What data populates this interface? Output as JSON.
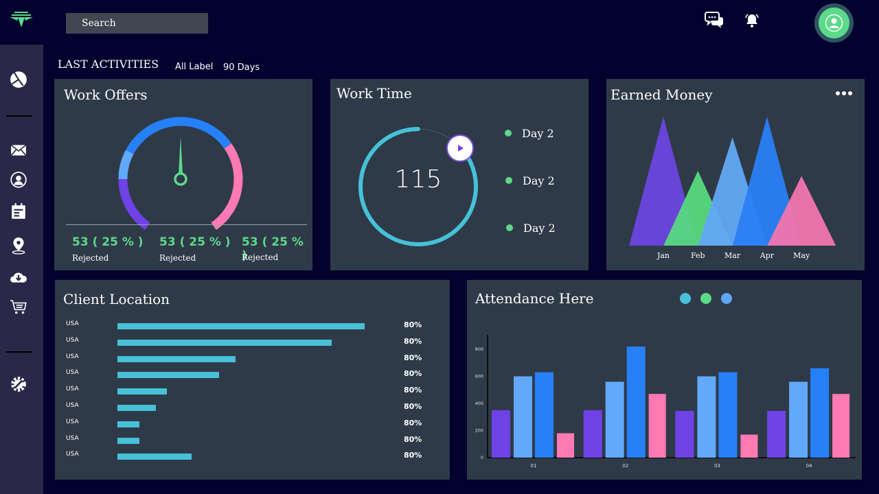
{
  "header": {
    "search_placeholder": "Search",
    "icons": [
      "logo-icon",
      "chat-icon",
      "bell-icon",
      "user-avatar-icon"
    ],
    "avatar_color": "#5cd98a"
  },
  "sidebar": {
    "items": [
      "pie-chart-icon",
      "mail-icon",
      "user-icon",
      "calendar-icon",
      "location-icon",
      "cloud-download-icon",
      "cart-icon",
      "settings-icon"
    ]
  },
  "activities": {
    "title": "LAST ACTIVITIES",
    "filter_label": "All Label",
    "range": "90 Days"
  },
  "work_offers": {
    "title": "Work Offers",
    "stats": [
      {
        "value": "53 ( 25 % )",
        "label": "Rejected"
      },
      {
        "value": "53 ( 25 % )",
        "label": "Rejected"
      },
      {
        "value": "53 ( 25 % )",
        "label": "Rejected"
      }
    ]
  },
  "work_time": {
    "title": "Work Time",
    "value": "115",
    "progress_percent": 85,
    "legend": [
      "Day 2",
      "Day 2",
      "Day 2"
    ]
  },
  "earned_money": {
    "title": "Earned Money",
    "menu": "more-icon"
  },
  "client_location": {
    "title": "Client Location",
    "rows": [
      {
        "name": "USA",
        "pct": "80%",
        "bar": 90
      },
      {
        "name": "USA",
        "pct": "80%",
        "bar": 78
      },
      {
        "name": "USA",
        "pct": "80%",
        "bar": 43
      },
      {
        "name": "USA",
        "pct": "80%",
        "bar": 37
      },
      {
        "name": "USA",
        "pct": "80%",
        "bar": 18
      },
      {
        "name": "USA",
        "pct": "80%",
        "bar": 14
      },
      {
        "name": "USA",
        "pct": "80%",
        "bar": 8
      },
      {
        "name": "USA",
        "pct": "80%",
        "bar": 8
      },
      {
        "name": "USA",
        "pct": "80%",
        "bar": 27
      }
    ]
  },
  "attendance": {
    "title": "Attendance Here",
    "legend_colors": [
      "#46c1d8",
      "#5cd98a",
      "#5fa5f5"
    ]
  },
  "chart_data": [
    {
      "type": "area",
      "title": "Earned Money",
      "categories": [
        "Jan",
        "Feb",
        "Mar",
        "Apr",
        "May"
      ],
      "values": [
        100,
        58,
        84,
        100,
        54
      ],
      "colors": [
        "#6c44e0",
        "#57d97f",
        "#62a8f6",
        "#2a80f5",
        "#f275ae"
      ]
    },
    {
      "type": "bar",
      "title": "Attendance Here",
      "categories": [
        "01",
        "02",
        "03",
        "04"
      ],
      "yticks": [
        0,
        200,
        400,
        600,
        800
      ],
      "ylim": [
        0,
        900
      ],
      "series": [
        {
          "values": [
            350,
            350,
            345,
            345
          ],
          "color": "#6f42e6"
        },
        {
          "values": [
            600,
            560,
            600,
            560
          ],
          "color": "#62a8fb"
        },
        {
          "values": [
            630,
            820,
            630,
            660
          ],
          "color": "#2680f8"
        },
        {
          "values": [
            180,
            470,
            170,
            470
          ],
          "color": "#ff7ab3"
        }
      ]
    }
  ]
}
